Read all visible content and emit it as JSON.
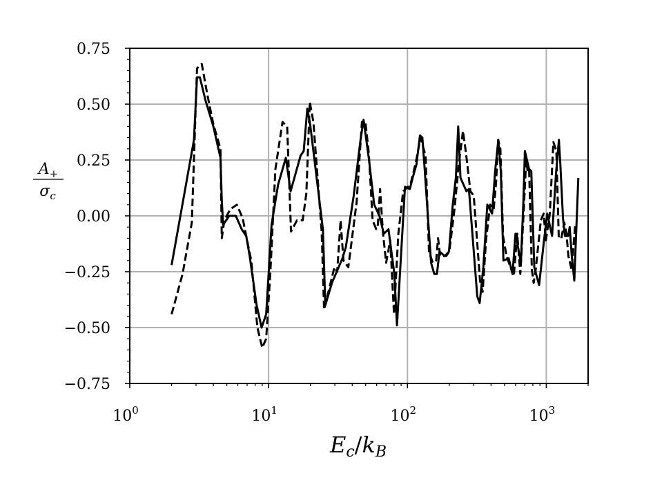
{
  "chart_data": {
    "type": "line",
    "xscale": "log",
    "xlim": [
      1,
      2000
    ],
    "ylim": [
      -0.75,
      0.75
    ],
    "grid": true,
    "xlabel": "E_c/k_B",
    "ylabel": "A_+ / σ_c",
    "xticks": [
      {
        "value": 1,
        "base": "10",
        "exp": "0"
      },
      {
        "value": 10,
        "base": "10",
        "exp": "1"
      },
      {
        "value": 100,
        "base": "10",
        "exp": "2"
      },
      {
        "value": 1000,
        "base": "10",
        "exp": "3"
      }
    ],
    "yticks": [
      {
        "value": 0.75,
        "label": "0.75"
      },
      {
        "value": 0.5,
        "label": "0.50"
      },
      {
        "value": 0.25,
        "label": "0.25"
      },
      {
        "value": 0,
        "label": "0.00"
      },
      {
        "value": -0.25,
        "label": "−0.25"
      },
      {
        "value": -0.5,
        "label": "−0.50"
      },
      {
        "value": -0.75,
        "label": "−0.75"
      }
    ],
    "series": [
      {
        "style": "solid",
        "color": "#000000",
        "x": [
          2.0,
          2.9,
          3.05,
          3.2,
          3.5,
          4.0,
          4.5,
          4.6,
          4.7,
          5.2,
          5.8,
          6.4,
          6.9,
          7.3,
          8.2,
          8.9,
          9.6,
          10.5,
          11.7,
          13.3,
          14.4,
          17.0,
          17.9,
          19.0,
          19.9,
          24.6,
          25.6,
          28.6,
          34.0,
          36.0,
          41.0,
          45.9,
          48.3,
          52.6,
          57.6,
          62.8,
          67.5,
          73.0,
          80.5,
          84.0,
          96.0,
          104.0,
          109.0,
          116.0,
          123.0,
          128.0,
          133.0,
          148.0,
          156.0,
          163.0,
          170.0,
          186.0,
          199.0,
          212.0,
          223.0,
          232.0,
          241.0,
          266.0,
          277.0,
          296.0,
          318.0,
          331.0,
          352.0,
          376.0,
          407.0,
          428.0,
          451.0,
          470.0,
          491.0,
          536.0,
          571.0,
          600.0,
          656.0,
          684.0,
          701.0,
          751.0,
          780.0,
          819.0,
          887.0,
          962.0,
          1016.0,
          1100.0,
          1174.0,
          1232.0,
          1262.0,
          1318.0,
          1362.0,
          1437.0,
          1473.0,
          1522.0,
          1590.0,
          1700.0
        ],
        "y": [
          -0.22,
          0.34,
          0.62,
          0.62,
          0.52,
          0.4,
          0.26,
          0.07,
          -0.04,
          0.0,
          0.0,
          -0.06,
          -0.09,
          -0.18,
          -0.4,
          -0.5,
          -0.44,
          -0.04,
          0.14,
          0.26,
          0.11,
          0.27,
          0.29,
          0.48,
          0.41,
          -0.06,
          -0.4,
          -0.3,
          -0.19,
          -0.14,
          0.09,
          0.34,
          0.43,
          0.26,
          0.05,
          0.0,
          -0.08,
          -0.06,
          -0.26,
          -0.49,
          0.13,
          0.12,
          0.17,
          0.23,
          0.36,
          0.35,
          0.21,
          -0.21,
          -0.26,
          -0.26,
          -0.16,
          -0.18,
          -0.16,
          0.05,
          0.17,
          0.4,
          0.17,
          0.11,
          0.12,
          -0.11,
          -0.36,
          -0.39,
          -0.23,
          0.05,
          0.01,
          0.2,
          0.34,
          0.2,
          -0.2,
          -0.19,
          -0.26,
          -0.08,
          -0.21,
          0.07,
          0.29,
          0.21,
          0.2,
          -0.23,
          -0.31,
          -0.11,
          0.01,
          -0.09,
          0.19,
          0.34,
          0.23,
          -0.01,
          -0.09,
          -0.09,
          -0.05,
          -0.17,
          -0.29,
          0.17
        ]
      },
      {
        "style": "dashed",
        "color": "#000000",
        "x": [
          2.0,
          2.4,
          2.8,
          3.05,
          3.3,
          3.6,
          4.0,
          4.5,
          4.6,
          4.8,
          5.3,
          5.9,
          6.5,
          6.9,
          7.5,
          8.3,
          9.0,
          9.6,
          10.3,
          11.2,
          12.6,
          13.6,
          14.5,
          16.0,
          17.6,
          18.7,
          19.8,
          21.0,
          24.1,
          25.1,
          28.2,
          29.8,
          31.2,
          33.0,
          34.6,
          37.5,
          43.0,
          47.0,
          49.8,
          52.7,
          56.1,
          59.6,
          61.2,
          63.5,
          66.7,
          70.2,
          75.1,
          80.0,
          86.0,
          93.0,
          105.0,
          115.0,
          124.0,
          135.0,
          143.0,
          152.0,
          161.0,
          166.0,
          172.0,
          190.0,
          200.0,
          218.0,
          234.0,
          251.0,
          264.0,
          284.0,
          300.0,
          319.0,
          333.0,
          348.0,
          368.0,
          394.0,
          418.0,
          435.0,
          450.0,
          467.0,
          488.0,
          517.0,
          552.0,
          583.0,
          617.0,
          650.0,
          682.0,
          716.0,
          734.0,
          752.0,
          787.0,
          811.0,
          839.0,
          913.0,
          957.0,
          993.0,
          1060.0,
          1124.0,
          1181.0,
          1229.0,
          1283.0,
          1346.0,
          1398.0,
          1442.0,
          1521.0,
          1615.0
        ],
        "y": [
          -0.44,
          -0.26,
          -0.03,
          0.66,
          0.68,
          0.55,
          0.41,
          0.3,
          -0.1,
          -0.02,
          0.03,
          0.05,
          -0.01,
          -0.09,
          -0.2,
          -0.5,
          -0.59,
          -0.55,
          -0.25,
          0.21,
          0.42,
          0.4,
          -0.07,
          -0.02,
          -0.02,
          0.1,
          0.51,
          0.42,
          -0.07,
          -0.42,
          -0.29,
          -0.23,
          -0.25,
          -0.02,
          -0.2,
          -0.23,
          0.06,
          0.42,
          0.42,
          0.28,
          -0.02,
          -0.06,
          -0.04,
          0.12,
          -0.08,
          -0.21,
          -0.11,
          -0.44,
          -0.08,
          0.11,
          0.14,
          0.24,
          0.35,
          0.27,
          -0.16,
          -0.21,
          -0.2,
          -0.1,
          -0.18,
          -0.18,
          -0.16,
          0.03,
          0.23,
          0.38,
          0.28,
          0.11,
          0.09,
          -0.13,
          -0.29,
          -0.34,
          -0.11,
          0.05,
          0.03,
          0.15,
          0.34,
          0.3,
          -0.09,
          -0.18,
          -0.23,
          -0.27,
          -0.08,
          -0.26,
          -0.02,
          0.25,
          0.2,
          0.21,
          -0.24,
          -0.3,
          -0.24,
          -0.02,
          0.01,
          -0.11,
          0.01,
          0.33,
          0.29,
          -0.1,
          -0.1,
          -0.03,
          -0.08,
          -0.18,
          -0.24,
          -0.04
        ]
      }
    ]
  }
}
